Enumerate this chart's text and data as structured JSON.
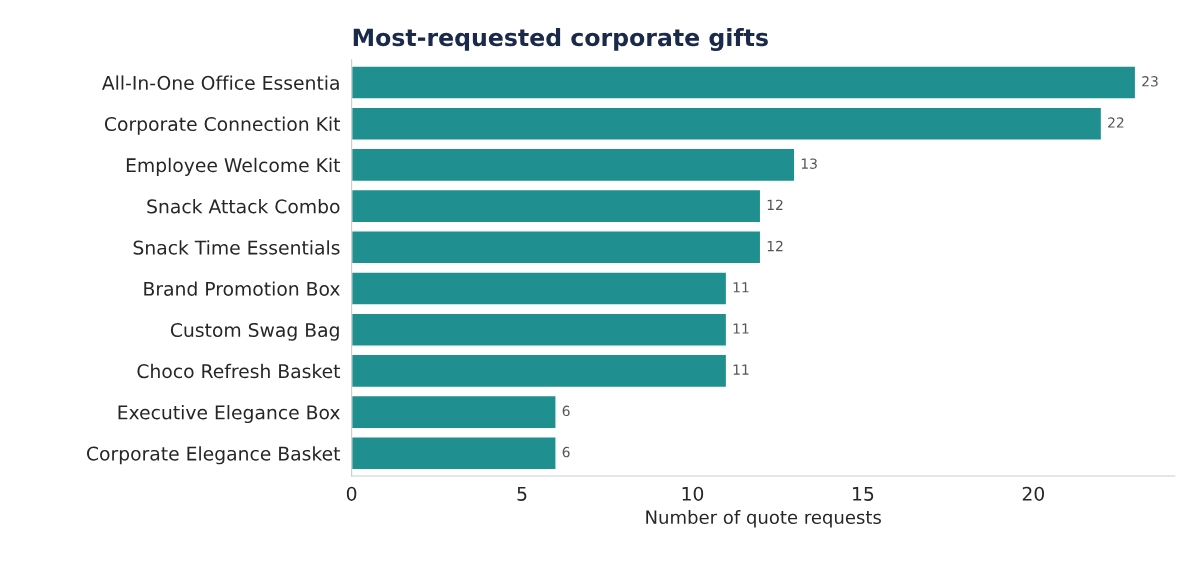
{
  "chart_data": {
    "type": "bar",
    "orientation": "horizontal",
    "title": "Most-requested corporate gifts",
    "xlabel": "Number of quote requests",
    "categories": [
      "All-In-One Office Essentia",
      "Corporate Connection Kit",
      "Employee Welcome Kit",
      "Snack Attack Combo",
      "Snack Time Essentials",
      "Brand Promotion Box",
      "Custom Swag Bag",
      "Choco Refresh Basket",
      "Executive Elegance Box",
      "Corporate Elegance Basket"
    ],
    "values": [
      23,
      22,
      13,
      12,
      12,
      11,
      11,
      11,
      6,
      6
    ],
    "color": "#1f8f8f",
    "xlim": [
      0,
      24.15
    ],
    "xticks": [
      0,
      5,
      10,
      15,
      20
    ],
    "data_labels": true,
    "grid": false
  }
}
